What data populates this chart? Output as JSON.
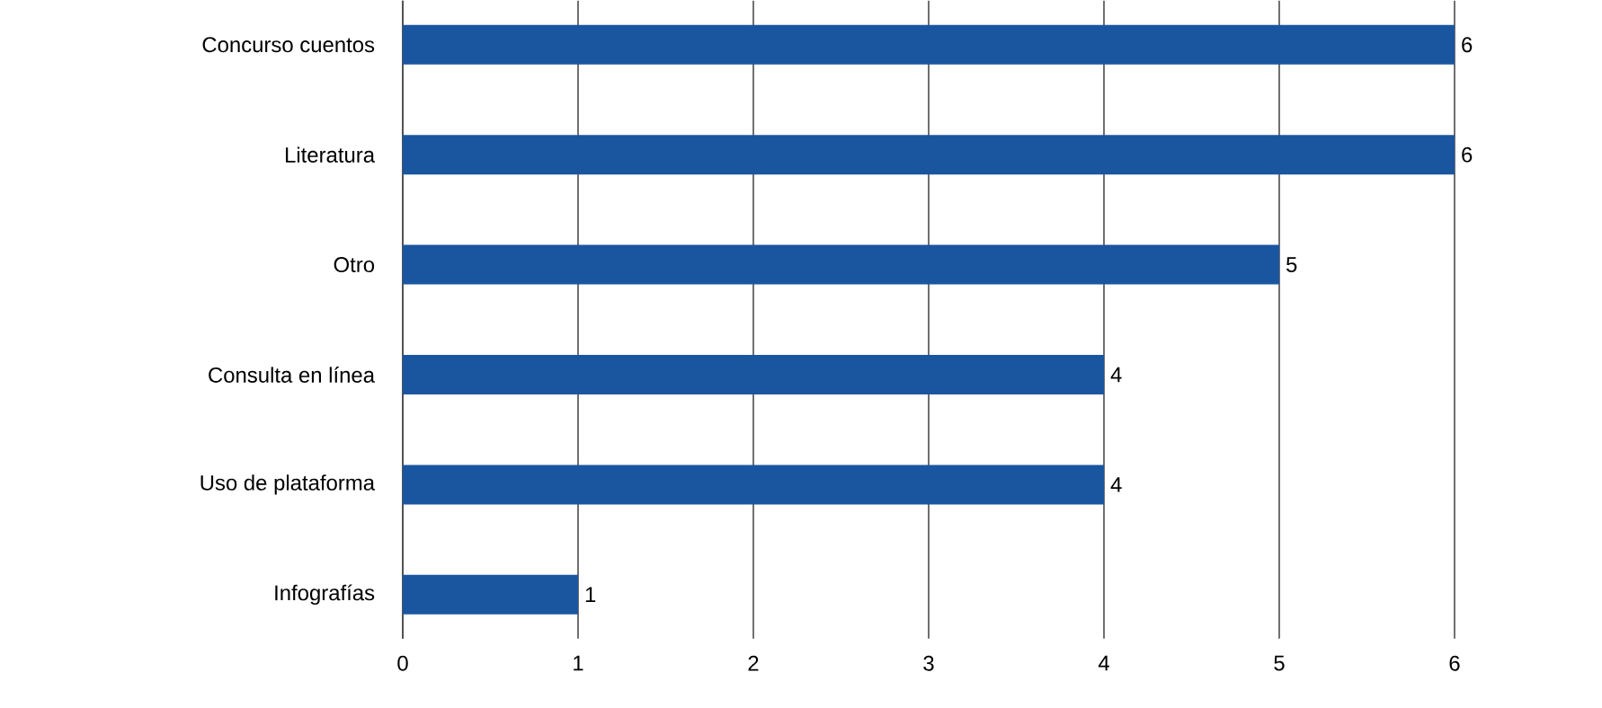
{
  "chart_data": {
    "type": "bar",
    "orientation": "horizontal",
    "categories": [
      "Concurso cuentos",
      "Literatura",
      "Otro",
      "Consulta en línea",
      "Uso de plataforma",
      "Infografías"
    ],
    "values": [
      6,
      6,
      5,
      4,
      4,
      1
    ],
    "color": "#1a56a0",
    "xlim": [
      0,
      6
    ],
    "xticks": [
      0,
      1,
      2,
      3,
      4,
      5,
      6
    ],
    "grid": "x",
    "data_labels": true
  }
}
